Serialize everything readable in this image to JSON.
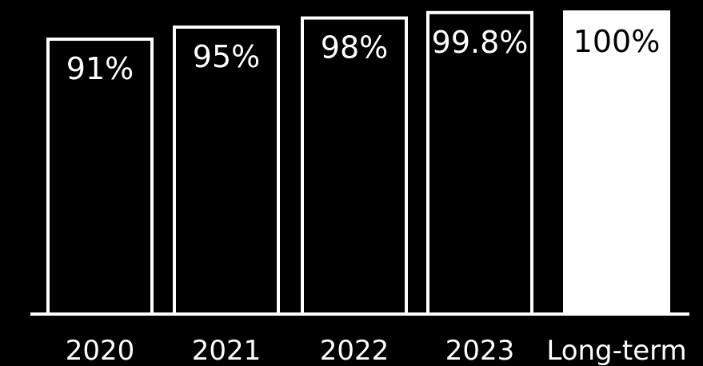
{
  "colors": {
    "background": "#000000",
    "bar_outline": "#ffffff",
    "bar_highlight_fill": "#ffffff",
    "text": "#ffffff",
    "text_on_highlight": "#000000"
  },
  "chart_data": {
    "type": "bar",
    "title": "",
    "xlabel": "",
    "ylabel": "",
    "categories": [
      "2020",
      "2021",
      "2022",
      "2023",
      "Long-term"
    ],
    "values": [
      91,
      95,
      98,
      99.8,
      100
    ],
    "data_labels": [
      "91%",
      "95%",
      "98%",
      "99.8%",
      "100%"
    ],
    "highlighted": [
      false,
      false,
      false,
      false,
      true
    ],
    "ylim": [
      0,
      100
    ],
    "grid": false,
    "legend": "none"
  }
}
